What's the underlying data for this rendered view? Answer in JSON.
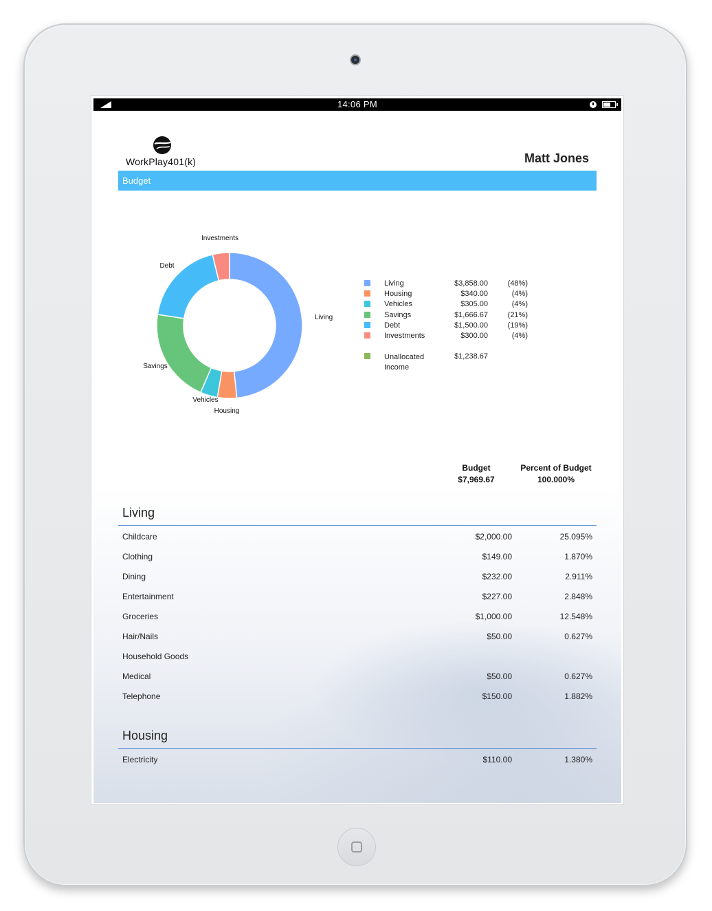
{
  "status_bar": {
    "time": "14:06 PM"
  },
  "header": {
    "brand": "WorkPlay401(k)",
    "user_name": "Matt Jones",
    "section_bar": "Budget"
  },
  "chart_data": {
    "type": "pie",
    "donut": true,
    "slices": [
      {
        "name": "Living",
        "value": 3858.0,
        "color": "#75aaff"
      },
      {
        "name": "Housing",
        "value": 340.0,
        "color": "#fa9363"
      },
      {
        "name": "Vehicles",
        "value": 305.0,
        "color": "#3cc6dc"
      },
      {
        "name": "Savings",
        "value": 1666.67,
        "color": "#66c57a"
      },
      {
        "name": "Debt",
        "value": 1500.0,
        "color": "#45bcf8"
      },
      {
        "name": "Investments",
        "value": 300.0,
        "color": "#f98a80"
      }
    ]
  },
  "legend": {
    "items": [
      {
        "name": "Living",
        "amount": "$3,858.00",
        "percent": "(48%)",
        "color": "#75aaff"
      },
      {
        "name": "Housing",
        "amount": "$340.00",
        "percent": "(4%)",
        "color": "#fa9363"
      },
      {
        "name": "Vehicles",
        "amount": "$305.00",
        "percent": "(4%)",
        "color": "#3cc6dc"
      },
      {
        "name": "Savings",
        "amount": "$1,666.67",
        "percent": "(21%)",
        "color": "#66c57a"
      },
      {
        "name": "Debt",
        "amount": "$1,500.00",
        "percent": "(19%)",
        "color": "#45bcf8"
      },
      {
        "name": "Investments",
        "amount": "$300.00",
        "percent": "(4%)",
        "color": "#f98a80"
      }
    ],
    "unallocated": {
      "name_line1": "Unallocated",
      "name_line2": "Income",
      "amount": "$1,238.67",
      "color": "#8ab85a"
    }
  },
  "summary": {
    "budget_label": "Budget",
    "budget_value": "$7,969.67",
    "percent_label": "Percent of Budget",
    "percent_value": "100.000%"
  },
  "sections": [
    {
      "title": "Living",
      "rows": [
        {
          "name": "Childcare",
          "amount": "$2,000.00",
          "percent": "25.095%"
        },
        {
          "name": "Clothing",
          "amount": "$149.00",
          "percent": "1.870%"
        },
        {
          "name": "Dining",
          "amount": "$232.00",
          "percent": "2.911%"
        },
        {
          "name": "Entertainment",
          "amount": "$227.00",
          "percent": "2.848%"
        },
        {
          "name": "Groceries",
          "amount": "$1,000.00",
          "percent": "12.548%"
        },
        {
          "name": "Hair/Nails",
          "amount": "$50.00",
          "percent": "0.627%"
        },
        {
          "name": "Household Goods",
          "amount": "",
          "percent": ""
        },
        {
          "name": "Medical",
          "amount": "$50.00",
          "percent": "0.627%"
        },
        {
          "name": "Telephone",
          "amount": "$150.00",
          "percent": "1.882%"
        }
      ]
    },
    {
      "title": "Housing",
      "rows": [
        {
          "name": "Electricity",
          "amount": "$110.00",
          "percent": "1.380%"
        }
      ]
    }
  ]
}
